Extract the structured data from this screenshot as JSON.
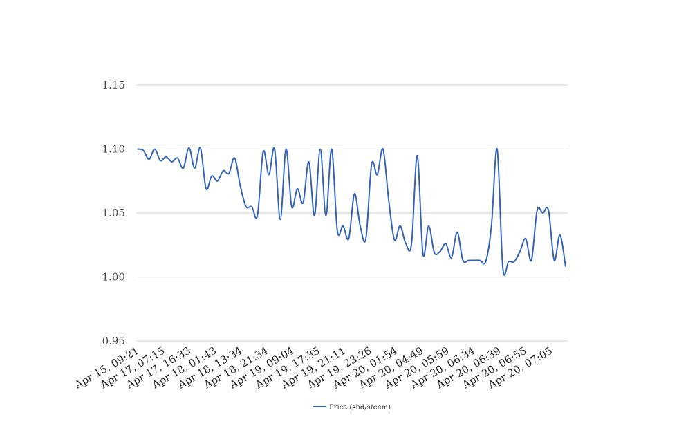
{
  "chart_data": {
    "type": "line",
    "title": "",
    "xlabel": "",
    "ylabel": "",
    "ylim": [
      0.95,
      1.15
    ],
    "yticks": [
      "0.95",
      "1.00",
      "1.05",
      "1.10",
      "1.15"
    ],
    "grid": "horizontal",
    "legend_position": "bottom",
    "x_tick_labels": [
      "Apr 15, 09:21",
      "Apr 17, 07:15",
      "Apr 17, 16:33",
      "Apr 18, 01:43",
      "Apr 18, 13:34",
      "Apr 18, 21:34",
      "Apr 19, 09:04",
      "Apr 19, 17:35",
      "Apr 19, 21:11",
      "Apr 19, 23:26",
      "Apr 20, 01:54",
      "Apr 20, 04:49",
      "Apr 20, 05:59",
      "Apr 20, 06:34",
      "Apr 20, 06:39",
      "Apr 20, 06:55",
      "Apr 20, 07:05"
    ],
    "series": [
      {
        "name": "Price (sbd/steem)",
        "color": "#3563b5",
        "values": [
          1.1,
          1.099,
          1.092,
          1.1,
          1.091,
          1.094,
          1.09,
          1.093,
          1.085,
          1.101,
          1.085,
          1.101,
          1.069,
          1.079,
          1.075,
          1.083,
          1.081,
          1.093,
          1.071,
          1.055,
          1.055,
          1.048,
          1.098,
          1.08,
          1.1,
          1.045,
          1.1,
          1.055,
          1.069,
          1.058,
          1.09,
          1.048,
          1.1,
          1.048,
          1.1,
          1.036,
          1.04,
          1.03,
          1.065,
          1.04,
          1.03,
          1.088,
          1.08,
          1.1,
          1.06,
          1.029,
          1.04,
          1.026,
          1.026,
          1.095,
          1.018,
          1.04,
          1.019,
          1.02,
          1.026,
          1.015,
          1.035,
          1.013,
          1.013,
          1.013,
          1.013,
          1.012,
          1.04,
          1.1,
          1.007,
          1.012,
          1.012,
          1.02,
          1.03,
          1.013,
          1.052,
          1.05,
          1.052,
          1.013,
          1.033,
          1.008
        ]
      }
    ]
  }
}
